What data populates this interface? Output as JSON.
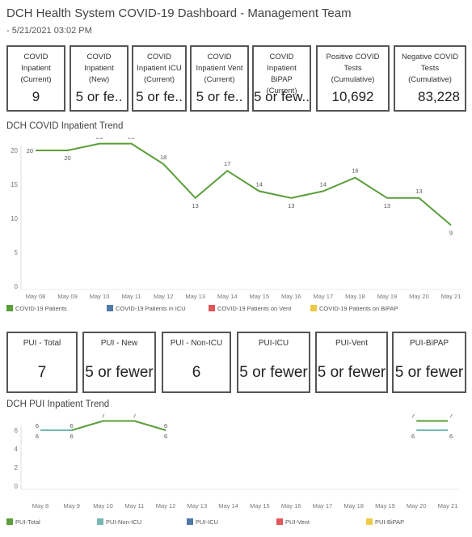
{
  "header": {
    "title": "DCH Health System COVID-19 Dashboard - Management Team",
    "subtitle": "- 5/21/2021 03:02 PM"
  },
  "kpi_row1": [
    {
      "label": "COVID\nInpatient\n(Current)",
      "value": "9"
    },
    {
      "label": "COVID\nInpatient\n(New)",
      "value": "5 or fe.."
    },
    {
      "label": "COVID\nInpatient ICU\n(Current)",
      "value": "5 or fe.."
    },
    {
      "label": "COVID\nInpatient Vent\n(Current)",
      "value": "5 or fe.."
    },
    {
      "label": "COVID\nInpatient BiPAP\n(Current)",
      "value": "5 or few.."
    },
    {
      "label": "Positive COVID\nTests\n(Cumulative)",
      "value": "10,692"
    },
    {
      "label": "Negative COVID\nTests\n(Cumulative)",
      "value": "83,228"
    }
  ],
  "kpi_row2": [
    {
      "label": "PUI - Total",
      "value": "7"
    },
    {
      "label": "PUI - New",
      "value": "5 or fewer"
    },
    {
      "label": "PUI - Non-ICU",
      "value": "6"
    },
    {
      "label": "PUI-ICU",
      "value": "5 or fewer"
    },
    {
      "label": "PUI-Vent",
      "value": "5 or fewer"
    },
    {
      "label": "PUI-BiPAP",
      "value": "5 or fewer"
    }
  ],
  "chart_titles": {
    "inpatient": "DCH COVID Inpatient Trend",
    "pui": "DCH PUI Inpatient Trend"
  },
  "chart_data": [
    {
      "type": "line",
      "title": "DCH COVID Inpatient Trend",
      "categories": [
        "May 08",
        "May 09",
        "May 10",
        "May 11",
        "May 12",
        "May 13",
        "May 14",
        "May 15",
        "May 16",
        "May 17",
        "May 18",
        "May 19",
        "May 20",
        "May 21"
      ],
      "ylim": [
        0,
        20
      ],
      "yticks": [
        0,
        5,
        10,
        15,
        20
      ],
      "grid": false,
      "series": [
        {
          "name": "COVID-19 Patients",
          "color": "#5a9e3a",
          "values": [
            20,
            20,
            21,
            21,
            18,
            13,
            17,
            14,
            13,
            14,
            16,
            13,
            13,
            9
          ]
        }
      ],
      "legend": [
        {
          "name": "COVID-19 Patients",
          "color": "#5a9e3a"
        },
        {
          "name": "COVID-19 Patients in ICU",
          "color": "#4e79a7"
        },
        {
          "name": "COVID-19 Patients on Vent",
          "color": "#e15759"
        },
        {
          "name": "COVID-19 Patients on BiPAP",
          "color": "#edc948"
        }
      ],
      "legend_position": "bottom"
    },
    {
      "type": "line",
      "title": "DCH PUI Inpatient Trend",
      "categories": [
        "May 8",
        "May 9",
        "May 10",
        "May 11",
        "May 12",
        "May 13",
        "May 14",
        "May 15",
        "May 16",
        "May 17",
        "May 18",
        "May 19",
        "May 20",
        "May 21"
      ],
      "ylim": [
        0,
        6
      ],
      "yticks": [
        0,
        2,
        4,
        6
      ],
      "grid": false,
      "series": [
        {
          "name": "PUI-Total",
          "color": "#5a9e3a",
          "values": [
            6,
            6,
            7,
            7,
            6,
            null,
            null,
            null,
            null,
            null,
            null,
            null,
            7,
            7
          ]
        },
        {
          "name": "PUI-Non-ICU",
          "color": "#76b7b2",
          "values": [
            6,
            6,
            null,
            null,
            6,
            null,
            null,
            null,
            null,
            null,
            null,
            null,
            6,
            6
          ]
        }
      ],
      "legend": [
        {
          "name": "PUI-Total",
          "color": "#5a9e3a"
        },
        {
          "name": "PUI-Non-ICU",
          "color": "#76b7b2"
        },
        {
          "name": "PUI-ICU",
          "color": "#4e79a7"
        },
        {
          "name": "PUI-Vent",
          "color": "#e15759"
        },
        {
          "name": "PUI-BiPAP",
          "color": "#edc948"
        }
      ],
      "legend_position": "bottom"
    }
  ]
}
